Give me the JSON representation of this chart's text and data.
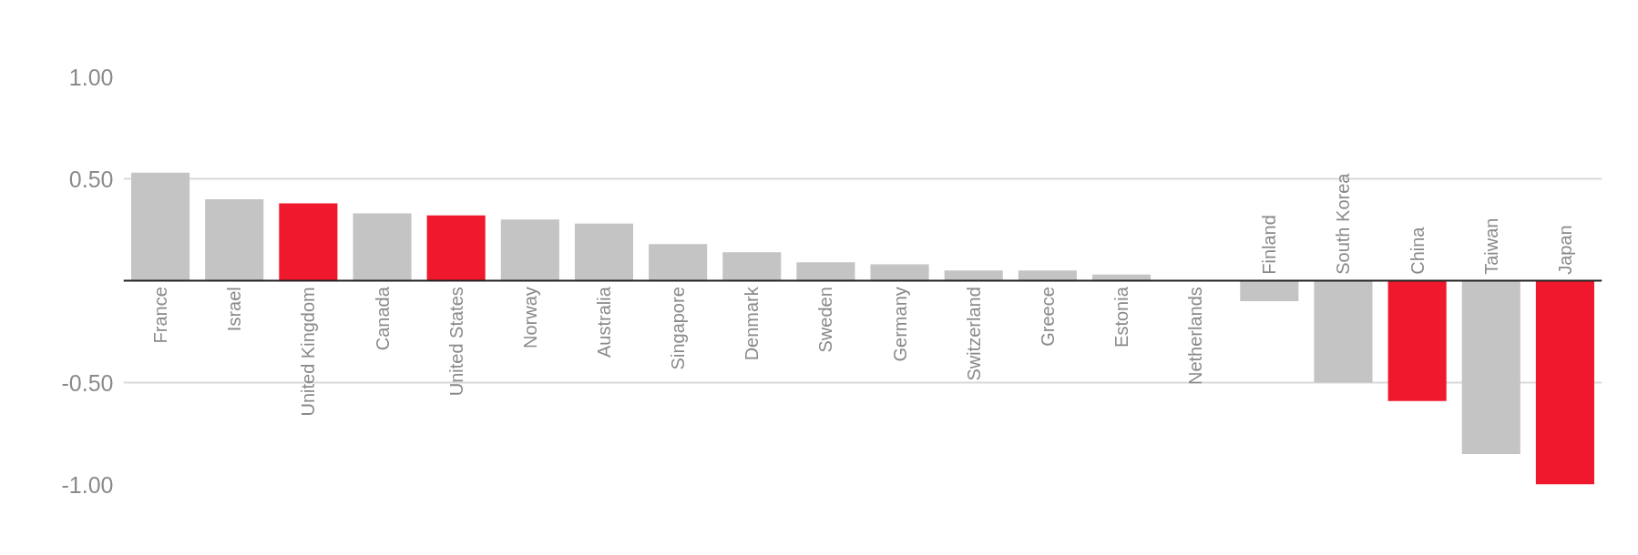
{
  "chart_data": {
    "type": "bar",
    "categories": [
      "France",
      "Israel",
      "United Kingdom",
      "Canada",
      "United States",
      "Norway",
      "Australia",
      "Singapore",
      "Denmark",
      "Sweden",
      "Germany",
      "Switzerland",
      "Greece",
      "Estonia",
      "Netherlands",
      "Finland",
      "South Korea",
      "China",
      "Taiwan",
      "Japan"
    ],
    "values": [
      0.53,
      0.4,
      0.38,
      0.33,
      0.32,
      0.3,
      0.28,
      0.18,
      0.14,
      0.09,
      0.08,
      0.05,
      0.05,
      0.03,
      0.0,
      -0.1,
      -0.5,
      -0.59,
      -0.85,
      -1.0
    ],
    "colors": [
      "#c4c4c4",
      "#c4c4c4",
      "#f0182c",
      "#c4c4c4",
      "#f0182c",
      "#c4c4c4",
      "#c4c4c4",
      "#c4c4c4",
      "#c4c4c4",
      "#c4c4c4",
      "#c4c4c4",
      "#c4c4c4",
      "#c4c4c4",
      "#c4c4c4",
      "#c4c4c4",
      "#c4c4c4",
      "#c4c4c4",
      "#f0182c",
      "#c4c4c4",
      "#f0182c"
    ],
    "ylim": [
      -1.0,
      1.0
    ],
    "yticks": [
      {
        "value": 1.0,
        "label": "1.00"
      },
      {
        "value": 0.5,
        "label": "0.50"
      },
      {
        "value": -0.5,
        "label": "-0.50"
      },
      {
        "value": -1.0,
        "label": "-1.00"
      }
    ],
    "grid": "y",
    "tick_labels": "y"
  }
}
